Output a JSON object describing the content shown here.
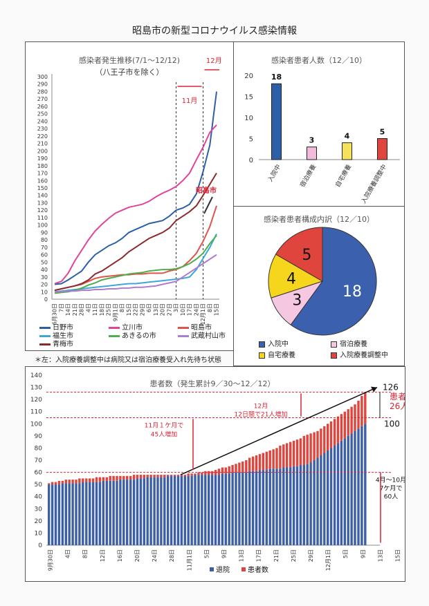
{
  "doc_title": "昭島市の新型コロナウイルス感染情報",
  "chart_data": [
    {
      "id": "trend",
      "type": "line",
      "title": "感染者発生推移(7/1～12/12)",
      "subtitle": "（八王子市を除く）",
      "ylim": [
        0,
        300
      ],
      "yticks": [
        0,
        10,
        20,
        30,
        40,
        50,
        60,
        70,
        80,
        90,
        100,
        110,
        120,
        130,
        140,
        150,
        160,
        170,
        180,
        190,
        200,
        210,
        220,
        230,
        240,
        250,
        260,
        270,
        280,
        290,
        300
      ],
      "x_ticks": [
        "6月30日",
        "7日",
        "14日",
        "21日",
        "28日",
        "4日",
        "11日",
        "18日",
        "25日",
        "9月1日",
        "8日",
        "15日",
        "22日",
        "29日",
        "6日",
        "13日",
        "20日",
        "27日",
        "3日",
        "10日",
        "17日",
        "24日",
        "12月1日",
        "8日",
        "15日"
      ],
      "annotations": {
        "nov": "11月",
        "dec": "12月",
        "akishima_label": "昭島市"
      },
      "series": [
        {
          "name": "日野市",
          "color": "#2c5fa8",
          "values": [
            20,
            21,
            26,
            32,
            38,
            50,
            60,
            66,
            72,
            76,
            82,
            90,
            94,
            98,
            102,
            104,
            106,
            112,
            120,
            123,
            128,
            142,
            172,
            208,
            280
          ]
        },
        {
          "name": "立川市",
          "color": "#e0449a",
          "values": [
            21,
            24,
            35,
            52,
            66,
            80,
            92,
            101,
            109,
            116,
            120,
            124,
            126,
            128,
            132,
            138,
            143,
            147,
            152,
            160,
            170,
            188,
            205,
            225,
            235
          ]
        },
        {
          "name": "昭島市",
          "color": "#e0524a",
          "values": [
            12,
            14,
            16,
            18,
            20,
            24,
            28,
            30,
            31,
            32,
            33,
            33,
            34,
            34,
            35,
            35,
            35,
            38,
            40,
            44,
            52,
            62,
            78,
            98,
            126
          ]
        },
        {
          "name": "福生市",
          "color": "#3ea6d8",
          "values": [
            10,
            11,
            12,
            13,
            14,
            15,
            16,
            17,
            18,
            19,
            20,
            21,
            21,
            22,
            23,
            24,
            25,
            26,
            27,
            28,
            30,
            40,
            55,
            70,
            88
          ]
        },
        {
          "name": "あきるの市",
          "color": "#4cae4c",
          "values": [
            8,
            9,
            10,
            12,
            15,
            19,
            22,
            26,
            28,
            30,
            32,
            34,
            35,
            36,
            38,
            39,
            40,
            40,
            41,
            44,
            48,
            54,
            62,
            75,
            86
          ]
        },
        {
          "name": "武蔵村山市",
          "color": "#b07ad0",
          "values": [
            10,
            10,
            11,
            11,
            12,
            12,
            13,
            13,
            14,
            14,
            15,
            15,
            16,
            16,
            17,
            18,
            20,
            22,
            24,
            30,
            36,
            42,
            48,
            54,
            60
          ]
        },
        {
          "name": "青梅市",
          "color": "#8b2a2a",
          "values": [
            12,
            14,
            16,
            18,
            21,
            26,
            34,
            38,
            44,
            50,
            56,
            64,
            70,
            76,
            82,
            86,
            90,
            96,
            106,
            112,
            118,
            126,
            140,
            155,
            170
          ]
        }
      ]
    },
    {
      "id": "patients",
      "type": "bar",
      "title": "感染者患者人数（12／10）",
      "ylim": [
        0,
        20
      ],
      "yticks": [
        0,
        5,
        10,
        15,
        20
      ],
      "categories": [
        "入院中",
        "宿泊療養",
        "自宅療養",
        "入院療養調整中"
      ],
      "values": [
        18,
        3,
        4,
        5
      ],
      "colors": [
        "#2c5fa8",
        "#f2bbd9",
        "#f6e15a",
        "#e0453d"
      ]
    },
    {
      "id": "composition",
      "type": "pie",
      "title": "感染者患者構成内訳（12／10）",
      "slices": [
        {
          "label": "入院中",
          "value": 18,
          "color": "#3b60ad"
        },
        {
          "label": "宿泊療養",
          "value": 3,
          "color": "#f5c7e0"
        },
        {
          "label": "自宅療養",
          "value": 4,
          "color": "#f6d51d"
        },
        {
          "label": "入院療養調整中",
          "value": 5,
          "color": "#e0453d"
        }
      ]
    },
    {
      "id": "cumulative",
      "type": "bar",
      "title": "患者数（発生累計9／30～12／12）",
      "ylim": [
        0,
        140
      ],
      "yticks": [
        0,
        10,
        20,
        30,
        40,
        50,
        60,
        70,
        80,
        90,
        100,
        110,
        120,
        130,
        140
      ],
      "x_ticks": [
        "9月30日",
        "4日",
        "8日",
        "12日",
        "16日",
        "20日",
        "24日",
        "28日",
        "11月1日",
        "5日",
        "9日",
        "13日",
        "17日",
        "21日",
        "25日",
        "29日",
        "12月1日",
        "5日",
        "9日",
        "13日",
        "15日"
      ],
      "series": [
        {
          "name": "退院",
          "color": "#3c5fa8",
          "values": [
            50,
            50,
            50,
            50,
            51,
            51,
            51,
            51,
            51,
            51,
            52,
            52,
            52,
            52,
            52,
            52,
            53,
            53,
            53,
            53,
            53,
            54,
            54,
            54,
            54,
            54,
            55,
            55,
            55,
            56,
            56,
            56,
            56,
            56,
            56,
            57,
            57,
            57,
            57,
            57,
            57,
            57,
            57,
            58,
            58,
            58,
            58,
            58,
            58,
            58,
            58,
            59,
            59,
            59,
            60,
            60,
            60,
            60,
            60,
            61,
            61,
            61,
            62,
            62,
            62,
            63,
            63,
            63,
            63,
            64,
            64,
            64,
            65,
            65,
            66,
            66,
            67,
            68,
            70,
            72,
            74,
            76,
            78,
            80,
            82,
            84,
            86,
            88,
            90,
            92,
            94,
            96,
            98,
            100
          ]
        },
        {
          "name": "患者数",
          "color": "#e0453d",
          "values": [
            51,
            52,
            52,
            53,
            53,
            54,
            54,
            54,
            54,
            55,
            55,
            55,
            55,
            55,
            56,
            56,
            56,
            56,
            57,
            57,
            57,
            57,
            57,
            57,
            57,
            58,
            58,
            58,
            58,
            58,
            58,
            58,
            58,
            58,
            58,
            58,
            58,
            58,
            58,
            58,
            58,
            59,
            59,
            59,
            60,
            60,
            61,
            61,
            61,
            62,
            63,
            64,
            64,
            65,
            66,
            67,
            68,
            69,
            70,
            72,
            73,
            74,
            75,
            76,
            77,
            78,
            79,
            80,
            82,
            83,
            84,
            85,
            86,
            87,
            88,
            90,
            91,
            92,
            93,
            94,
            96,
            98,
            100,
            102,
            104,
            106,
            108,
            110,
            112,
            114,
            116,
            119,
            123,
            126
          ]
        }
      ],
      "annotations": {
        "top_value": "126",
        "patients_label": "患者\n26人",
        "hundred": "100",
        "dec_text": "12月\n12日間で21人増加",
        "nov_text": "11月１ケ月で\n45人増加",
        "oct_text": "4月～10月\n7ケ月で\n60人"
      }
    }
  ],
  "note": "＊左：入院療養調整中は病院又は宿泊療養受入れ先待ち状態"
}
